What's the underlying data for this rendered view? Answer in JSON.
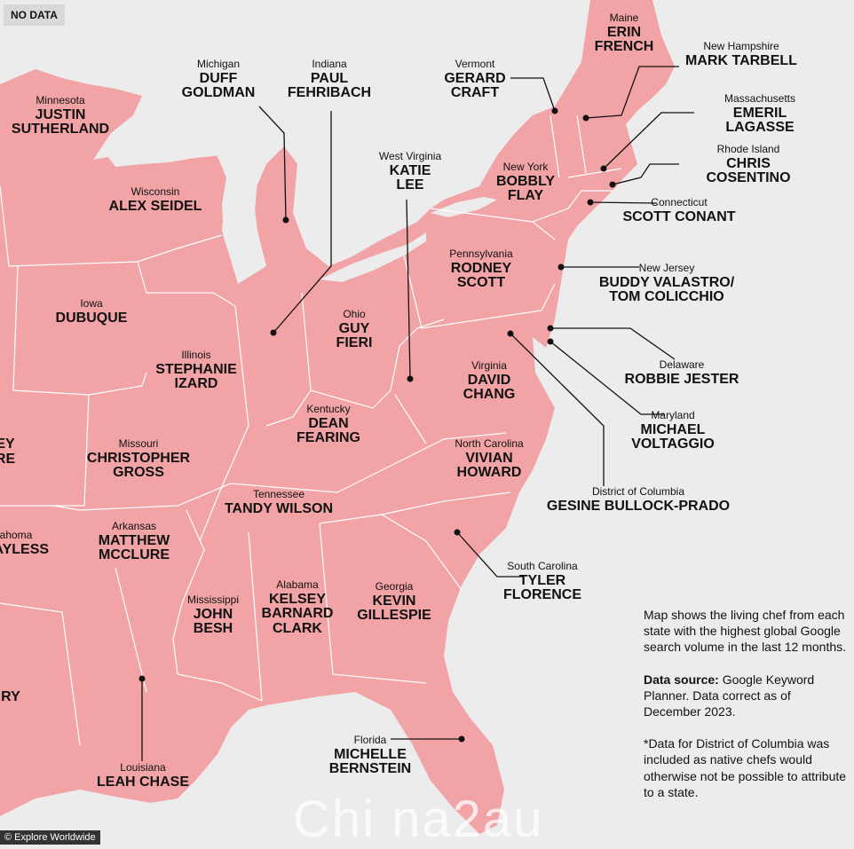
{
  "legend": {
    "no_data": "NO DATA"
  },
  "colors": {
    "land": "#f2a3a6",
    "border": "#ffffff",
    "background": "#ececec",
    "lake": "#ececec",
    "leader": "#111111"
  },
  "labels": [
    {
      "key": "minnesota",
      "state": "Minnesota",
      "chef": "JUSTIN\nSUTHERLAND"
    },
    {
      "key": "michigan",
      "state": "Michigan",
      "chef": "DUFF\nGOLDMAN"
    },
    {
      "key": "indiana",
      "state": "Indiana",
      "chef": "PAUL\nFEHRIBACH"
    },
    {
      "key": "vermont",
      "state": "Vermont",
      "chef": "GERARD\nCRAFT"
    },
    {
      "key": "maine",
      "state": "Maine",
      "chef": "ERIN\nFRENCH"
    },
    {
      "key": "new_hampshire",
      "state": "New Hampshire",
      "chef": "MARK TARBELL"
    },
    {
      "key": "massachusetts",
      "state": "Massachusetts",
      "chef": "EMERIL LAGASSE"
    },
    {
      "key": "rhode_island",
      "state": "Rhode Island",
      "chef": "CHRIS COSENTINO"
    },
    {
      "key": "connecticut",
      "state": "Connecticut",
      "chef": "SCOTT CONANT"
    },
    {
      "key": "wisconsin",
      "state": "Wisconsin",
      "chef": "ALEX SEIDEL"
    },
    {
      "key": "west_virginia",
      "state": "West Virginia",
      "chef": "KATIE\nLEE"
    },
    {
      "key": "new_york",
      "state": "New York",
      "chef": "BOBBLY\nFLAY"
    },
    {
      "key": "pennsylvania",
      "state": "Pennsylvania",
      "chef": "RODNEY\nSCOTT"
    },
    {
      "key": "new_jersey",
      "state": "New Jersey",
      "chef": "BUDDY VALASTRO/\nTOM COLICCHIO"
    },
    {
      "key": "iowa",
      "state": "Iowa",
      "chef": "DUBUQUE"
    },
    {
      "key": "ohio",
      "state": "Ohio",
      "chef": "GUY\nFIERI"
    },
    {
      "key": "illinois",
      "state": "Illinois",
      "chef": "STEPHANIE\nIZARD"
    },
    {
      "key": "delaware",
      "state": "Delaware",
      "chef": "ROBBIE JESTER"
    },
    {
      "key": "virginia",
      "state": "Virginia",
      "chef": "DAVID\nCHANG"
    },
    {
      "key": "kentucky",
      "state": "Kentucky",
      "chef": "DEAN\nFEARING"
    },
    {
      "key": "maryland",
      "state": "Maryland",
      "chef": "MICHAEL\nVOLTAGGIO"
    },
    {
      "key": "missouri",
      "state": "Missouri",
      "chef": "CHRISTOPHER\nGROSS"
    },
    {
      "key": "north_carolina",
      "state": "North Carolina",
      "chef": "VIVIAN\nHOWARD"
    },
    {
      "key": "dc",
      "state": "District of Columbia",
      "chef": "GESINE BULLOCK-PRADO"
    },
    {
      "key": "tennessee",
      "state": "Tennessee",
      "chef": "TANDY WILSON"
    },
    {
      "key": "arkansas",
      "state": "Arkansas",
      "chef": "MATTHEW\nMCCLURE"
    },
    {
      "key": "oklahoma",
      "state": "ahoma",
      "chef": "BAYLESS"
    },
    {
      "key": "kansas",
      "state": "",
      "chef": "EY\nRE"
    },
    {
      "key": "south_carolina",
      "state": "South Carolina",
      "chef": "TYLER\nFLORENCE"
    },
    {
      "key": "mississippi",
      "state": "Mississippi",
      "chef": "JOHN\nBESH"
    },
    {
      "key": "alabama",
      "state": "Alabama",
      "chef": "KELSEY\nBARNARD\nCLARK"
    },
    {
      "key": "georgia",
      "state": "Georgia",
      "chef": "KEVIN\nGILLESPIE"
    },
    {
      "key": "texas",
      "state": "",
      "chef": "RY"
    },
    {
      "key": "florida",
      "state": "Florida",
      "chef": "MICHELLE\nBERNSTEIN"
    },
    {
      "key": "louisiana",
      "state": "Louisiana",
      "chef": "LEAH CHASE"
    }
  ],
  "note": {
    "description": "Map shows the living chef from each state with the highest global Google search volume in the last 12 months.",
    "source_label": "Data source:",
    "source_text": " Google Keyword Planner. Data correct as of December 2023.",
    "dc_note": "*Data for District of Columbia was included as native chefs would otherwise not be possible to attribute to a state."
  },
  "credit": "© Explore Worldwide",
  "watermark": "Chi na2au"
}
